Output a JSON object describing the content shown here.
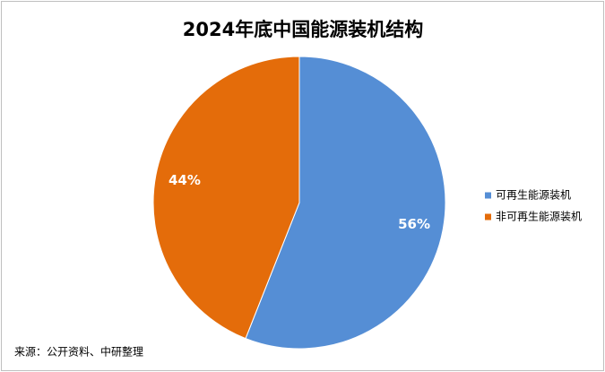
{
  "chart_data": {
    "type": "pie",
    "title": "2024年底中国能源装机结构",
    "categories": [
      "可再生能源装机",
      "非可再生能源装机"
    ],
    "values": [
      56,
      44
    ],
    "value_labels": [
      "56%",
      "44%"
    ],
    "colors": [
      "#558ed5",
      "#e46c0a"
    ],
    "legend": "right",
    "source": "来源：公开资料、中研整理"
  }
}
